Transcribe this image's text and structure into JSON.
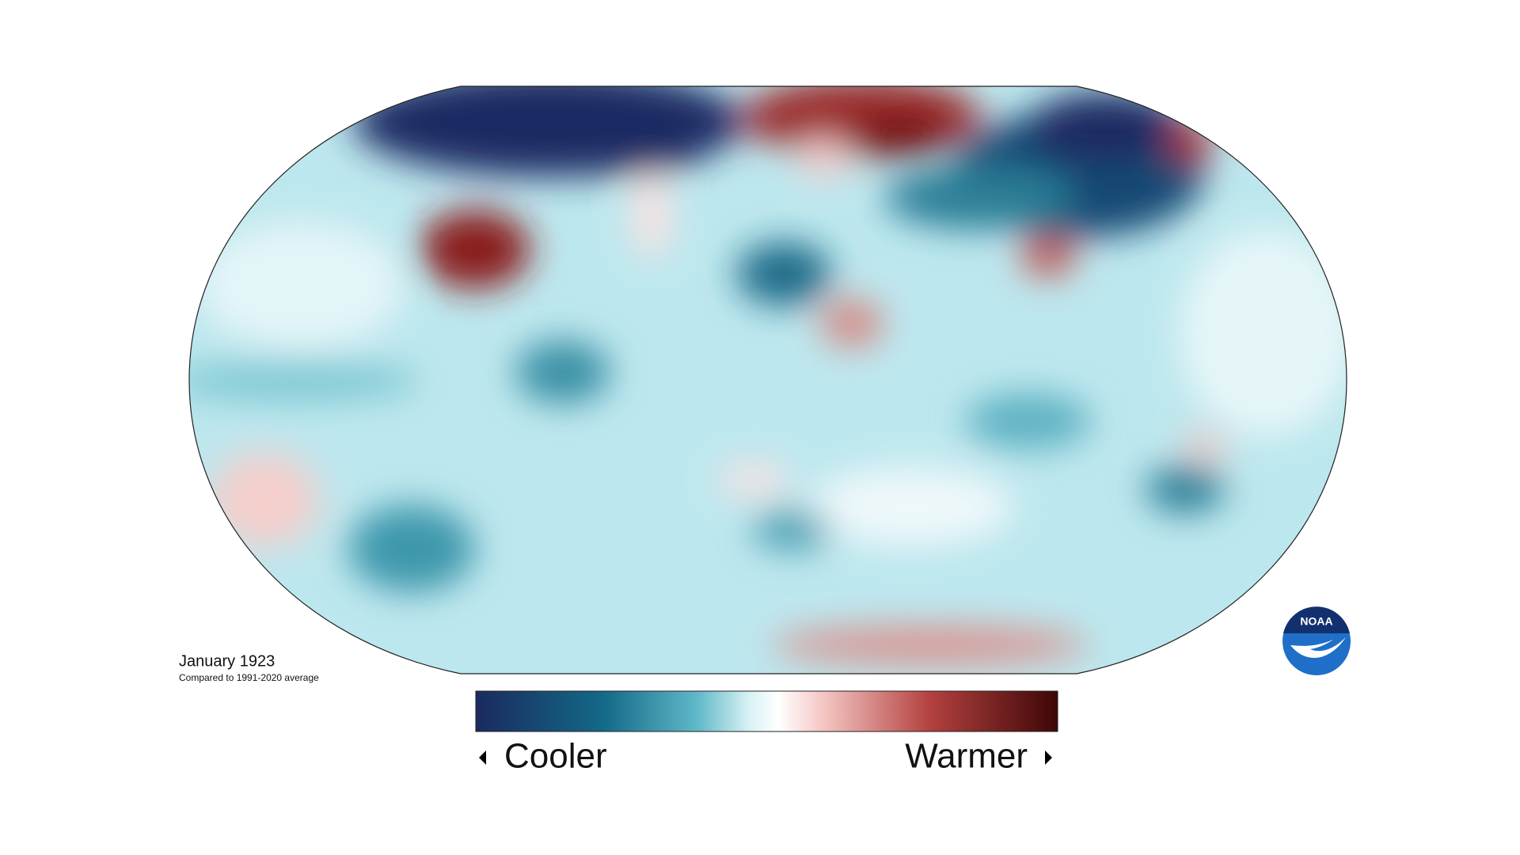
{
  "title": "January 1923",
  "subtitle": "Compared to 1991-2020 average",
  "legend": {
    "low": "Cooler",
    "high": "Warmer"
  },
  "logo": "NOAA"
}
